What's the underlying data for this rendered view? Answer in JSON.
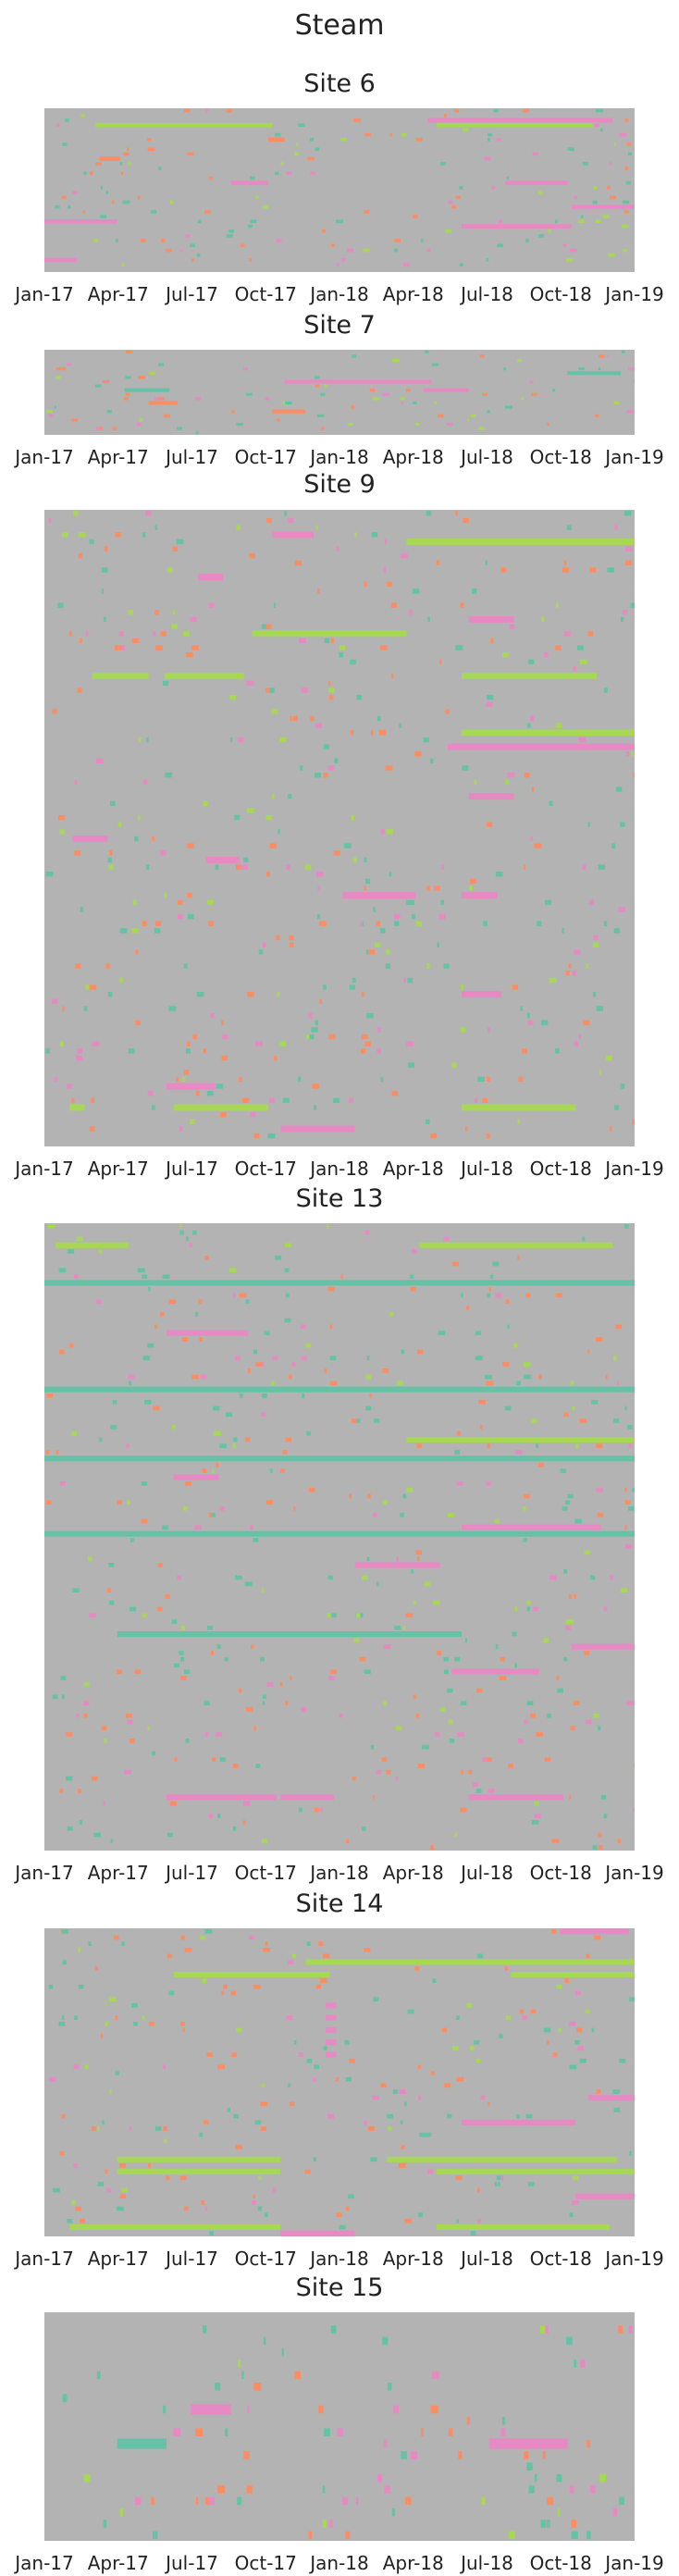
{
  "title": "Steam",
  "x_ticks": [
    "Jan-17",
    "Apr-17",
    "Jul-17",
    "Oct-17",
    "Jan-18",
    "Apr-18",
    "Jul-18",
    "Oct-18",
    "Jan-19"
  ],
  "colors": {
    "background": "#b3b3b3",
    "green": "#a6d854",
    "pink": "#e78ac3",
    "orange": "#fc8d62",
    "teal": "#66c2a5",
    "yellow": "#ffd92f"
  },
  "chart_data": [
    {
      "type": "heatmap",
      "title": "Site 6",
      "x_range": [
        "2017-01-01",
        "2019-01-01"
      ],
      "rows": 34,
      "bands": [
        {
          "row": 3,
          "start": "2017-03-05",
          "end": "2017-10-10",
          "color": "green"
        },
        {
          "row": 3,
          "start": "2018-05-01",
          "end": "2018-11-10",
          "color": "green"
        },
        {
          "row": 2,
          "start": "2018-04-20",
          "end": "2018-12-05",
          "color": "pink"
        },
        {
          "row": 15,
          "start": "2017-08-20",
          "end": "2017-10-05",
          "color": "pink"
        },
        {
          "row": 15,
          "start": "2018-07-25",
          "end": "2018-10-10",
          "color": "pink"
        },
        {
          "row": 20,
          "start": "2018-10-15",
          "end": "2019-01-01",
          "color": "pink"
        },
        {
          "row": 23,
          "start": "2017-01-01",
          "end": "2017-04-01",
          "color": "pink"
        },
        {
          "row": 24,
          "start": "2018-06-01",
          "end": "2018-10-15",
          "color": "pink"
        },
        {
          "row": 31,
          "start": "2017-01-01",
          "end": "2017-02-10",
          "color": "pink"
        },
        {
          "row": 10,
          "start": "2017-03-10",
          "end": "2017-04-05",
          "color": "orange"
        },
        {
          "row": 6,
          "start": "2017-10-05",
          "end": "2017-10-25",
          "color": "orange"
        }
      ]
    },
    {
      "type": "heatmap",
      "title": "Site 7",
      "x_range": [
        "2017-01-01",
        "2019-01-01"
      ],
      "rows": 20,
      "bands": [
        {
          "row": 7,
          "start": "2017-10-25",
          "end": "2018-04-25",
          "color": "pink"
        },
        {
          "row": 9,
          "start": "2018-04-15",
          "end": "2018-06-10",
          "color": "pink"
        },
        {
          "row": 9,
          "start": "2017-04-10",
          "end": "2017-06-05",
          "color": "teal"
        },
        {
          "row": 5,
          "start": "2018-10-10",
          "end": "2018-12-15",
          "color": "teal"
        },
        {
          "row": 12,
          "start": "2017-05-10",
          "end": "2017-06-15",
          "color": "orange"
        },
        {
          "row": 14,
          "start": "2017-10-10",
          "end": "2017-11-20",
          "color": "orange"
        }
      ]
    },
    {
      "type": "heatmap",
      "title": "Site 9",
      "x_range": [
        "2017-01-01",
        "2019-01-01"
      ],
      "rows": 90,
      "bands": [
        {
          "row": 4,
          "start": "2018-03-25",
          "end": "2019-01-01",
          "color": "green"
        },
        {
          "row": 17,
          "start": "2017-09-15",
          "end": "2018-03-25",
          "color": "green"
        },
        {
          "row": 23,
          "start": "2017-03-01",
          "end": "2017-05-10",
          "color": "green"
        },
        {
          "row": 23,
          "start": "2017-05-30",
          "end": "2017-09-05",
          "color": "green"
        },
        {
          "row": 23,
          "start": "2018-06-01",
          "end": "2018-11-15",
          "color": "green"
        },
        {
          "row": 31,
          "start": "2018-06-01",
          "end": "2019-01-01",
          "color": "green"
        },
        {
          "row": 84,
          "start": "2017-02-01",
          "end": "2017-02-20",
          "color": "green"
        },
        {
          "row": 84,
          "start": "2017-06-10",
          "end": "2017-10-05",
          "color": "green"
        },
        {
          "row": 84,
          "start": "2018-06-01",
          "end": "2018-10-20",
          "color": "green"
        },
        {
          "row": 3,
          "start": "2017-10-10",
          "end": "2017-11-30",
          "color": "pink"
        },
        {
          "row": 9,
          "start": "2017-07-10",
          "end": "2017-08-10",
          "color": "pink"
        },
        {
          "row": 15,
          "start": "2018-06-10",
          "end": "2018-08-05",
          "color": "pink"
        },
        {
          "row": 33,
          "start": "2018-05-15",
          "end": "2019-01-01",
          "color": "pink"
        },
        {
          "row": 40,
          "start": "2018-06-10",
          "end": "2018-08-05",
          "color": "pink"
        },
        {
          "row": 46,
          "start": "2017-02-05",
          "end": "2017-03-20",
          "color": "pink"
        },
        {
          "row": 49,
          "start": "2017-07-20",
          "end": "2017-08-30",
          "color": "pink"
        },
        {
          "row": 54,
          "start": "2018-01-05",
          "end": "2018-04-05",
          "color": "pink"
        },
        {
          "row": 54,
          "start": "2018-06-01",
          "end": "2018-07-15",
          "color": "pink"
        },
        {
          "row": 68,
          "start": "2018-06-01",
          "end": "2018-07-20",
          "color": "pink"
        },
        {
          "row": 81,
          "start": "2017-06-01",
          "end": "2017-08-01",
          "color": "pink"
        },
        {
          "row": 87,
          "start": "2017-10-20",
          "end": "2018-01-20",
          "color": "pink"
        }
      ]
    },
    {
      "type": "heatmap",
      "title": "Site 13",
      "x_range": [
        "2017-01-01",
        "2019-01-01"
      ],
      "rows": 100,
      "bands": [
        {
          "row": 3,
          "start": "2017-01-15",
          "end": "2017-04-15",
          "color": "green"
        },
        {
          "row": 3,
          "start": "2018-04-10",
          "end": "2018-12-05",
          "color": "green"
        },
        {
          "row": 34,
          "start": "2018-03-25",
          "end": "2019-01-01",
          "color": "green"
        },
        {
          "row": 17,
          "start": "2017-06-01",
          "end": "2017-09-10",
          "color": "pink"
        },
        {
          "row": 40,
          "start": "2017-06-10",
          "end": "2017-08-05",
          "color": "pink"
        },
        {
          "row": 48,
          "start": "2018-06-01",
          "end": "2018-11-20",
          "color": "pink"
        },
        {
          "row": 54,
          "start": "2018-01-20",
          "end": "2018-05-05",
          "color": "pink"
        },
        {
          "row": 67,
          "start": "2018-10-15",
          "end": "2019-01-01",
          "color": "pink"
        },
        {
          "row": 71,
          "start": "2018-05-20",
          "end": "2018-09-05",
          "color": "pink"
        },
        {
          "row": 91,
          "start": "2017-06-01",
          "end": "2017-10-15",
          "color": "pink"
        },
        {
          "row": 91,
          "start": "2017-10-20",
          "end": "2017-12-25",
          "color": "pink"
        },
        {
          "row": 91,
          "start": "2018-06-10",
          "end": "2018-10-05",
          "color": "pink"
        },
        {
          "row": 9,
          "start": "2017-01-01",
          "end": "2019-01-01",
          "color": "teal"
        },
        {
          "row": 26,
          "start": "2017-01-01",
          "end": "2019-01-01",
          "color": "teal"
        },
        {
          "row": 37,
          "start": "2017-01-01",
          "end": "2019-01-01",
          "color": "teal"
        },
        {
          "row": 49,
          "start": "2017-01-01",
          "end": "2019-01-01",
          "color": "teal"
        },
        {
          "row": 65,
          "start": "2017-04-01",
          "end": "2018-06-01",
          "color": "teal"
        }
      ]
    },
    {
      "type": "heatmap",
      "title": "Site 14",
      "x_range": [
        "2017-01-01",
        "2019-01-01"
      ],
      "rows": 50,
      "bands": [
        {
          "row": 5,
          "start": "2017-11-20",
          "end": "2019-01-01",
          "color": "green"
        },
        {
          "row": 7,
          "start": "2017-06-10",
          "end": "2017-12-20",
          "color": "green"
        },
        {
          "row": 7,
          "start": "2018-08-01",
          "end": "2019-01-01",
          "color": "green"
        },
        {
          "row": 37,
          "start": "2017-04-01",
          "end": "2017-10-20",
          "color": "green"
        },
        {
          "row": 37,
          "start": "2018-03-01",
          "end": "2018-12-10",
          "color": "green"
        },
        {
          "row": 39,
          "start": "2017-04-01",
          "end": "2017-10-20",
          "color": "green"
        },
        {
          "row": 39,
          "start": "2018-05-01",
          "end": "2019-01-01",
          "color": "green"
        },
        {
          "row": 48,
          "start": "2017-02-01",
          "end": "2017-10-20",
          "color": "green"
        },
        {
          "row": 48,
          "start": "2018-05-01",
          "end": "2018-12-01",
          "color": "green"
        },
        {
          "row": 0,
          "start": "2018-10-01",
          "end": "2018-12-25",
          "color": "pink"
        },
        {
          "row": 27,
          "start": "2018-11-05",
          "end": "2019-01-01",
          "color": "pink"
        },
        {
          "row": 31,
          "start": "2018-06-01",
          "end": "2018-10-20",
          "color": "pink"
        },
        {
          "row": 43,
          "start": "2018-10-20",
          "end": "2019-01-01",
          "color": "pink"
        },
        {
          "row": 49,
          "start": "2017-10-20",
          "end": "2018-01-20",
          "color": "pink"
        },
        {
          "row": 12,
          "start": "2017-12-15",
          "end": "2017-12-28",
          "color": "pink"
        },
        {
          "row": 14,
          "start": "2017-12-15",
          "end": "2017-12-28",
          "color": "pink"
        },
        {
          "row": 16,
          "start": "2017-12-15",
          "end": "2017-12-28",
          "color": "pink"
        },
        {
          "row": 18,
          "start": "2017-12-15",
          "end": "2017-12-28",
          "color": "pink"
        },
        {
          "row": 20,
          "start": "2017-12-15",
          "end": "2017-12-28",
          "color": "pink"
        }
      ]
    },
    {
      "type": "heatmap",
      "title": "Site 15",
      "x_range": [
        "2017-01-01",
        "2019-01-01"
      ],
      "rows": 20,
      "bands": [
        {
          "row": 8,
          "start": "2017-07-01",
          "end": "2017-08-20",
          "color": "pink"
        },
        {
          "row": 11,
          "start": "2018-07-05",
          "end": "2018-10-10",
          "color": "pink"
        },
        {
          "row": 11,
          "start": "2017-04-01",
          "end": "2017-06-01",
          "color": "teal"
        }
      ]
    }
  ]
}
